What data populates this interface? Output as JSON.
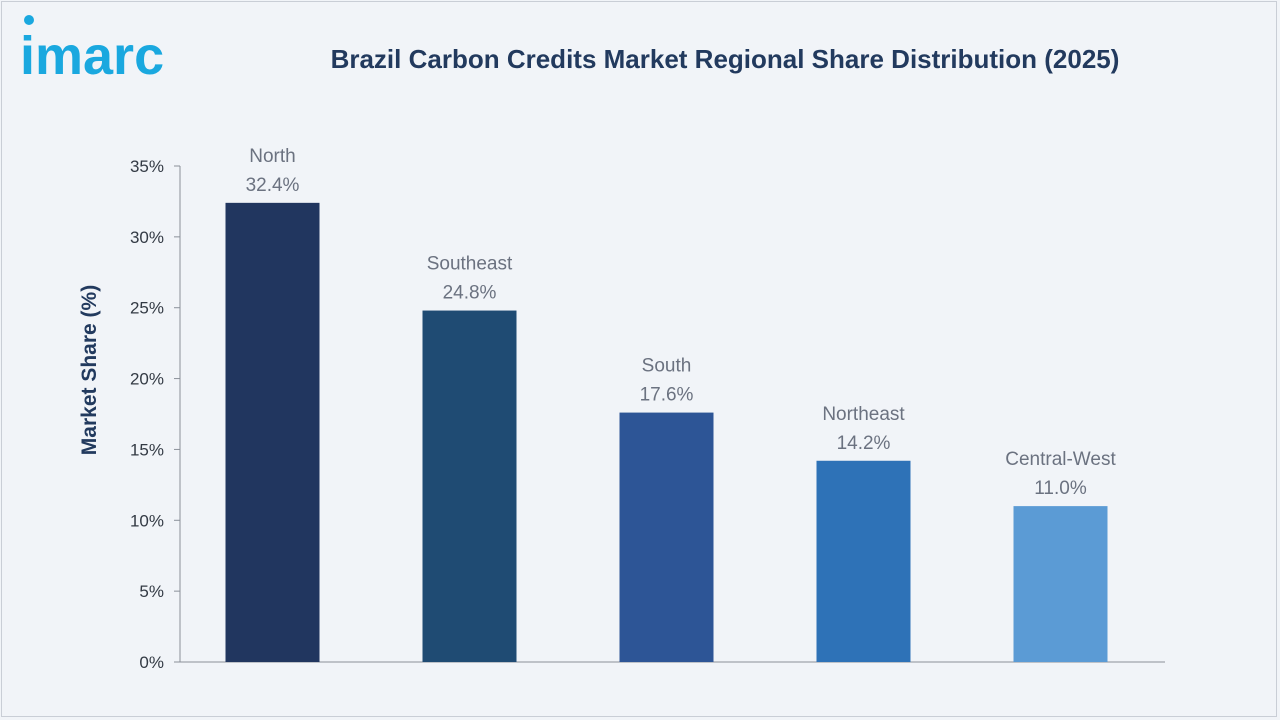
{
  "brand": {
    "logo_text": "imarc",
    "accent": "#1aa8df"
  },
  "title": "Brazil Carbon Credits Market Regional Share Distribution (2025)",
  "chart_data": {
    "type": "bar",
    "title": "Brazil Carbon Credits Market Regional Share Distribution (2025)",
    "xlabel": "",
    "ylabel": "Market Share (%)",
    "ylim": [
      0,
      35
    ],
    "yticks": [
      0,
      5,
      10,
      15,
      20,
      25,
      30,
      35
    ],
    "ytick_labels": [
      "0%",
      "5%",
      "10%",
      "15%",
      "20%",
      "25%",
      "30%",
      "35%"
    ],
    "categories": [
      "North",
      "Southeast",
      "South",
      "Northeast",
      "Central-West"
    ],
    "values": [
      32.4,
      24.8,
      17.6,
      14.2,
      11.0
    ],
    "value_labels": [
      "32.4%",
      "24.8%",
      "17.6%",
      "14.2%",
      "11.0%"
    ],
    "colors": [
      "#21365f",
      "#1f4b73",
      "#2d5596",
      "#2e72b7",
      "#5b9bd5"
    ],
    "grid": false,
    "legend": "none"
  }
}
